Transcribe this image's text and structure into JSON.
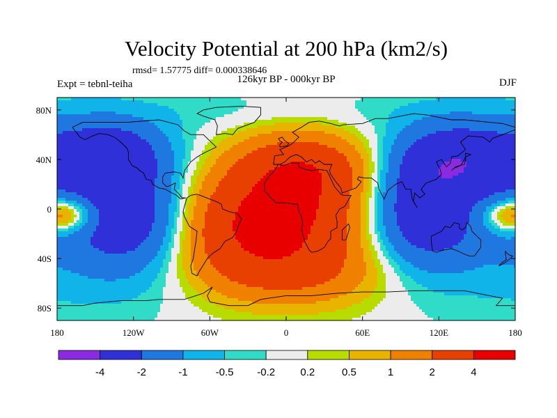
{
  "chart_data": {
    "type": "heatmap",
    "title": "Velocity Potential at 200 hPa (km2/s)",
    "stats": "rmsd= 1.57775  diff= 0.000338646",
    "subtitle": "126kyr BP - 000kyr BP",
    "left_label": "Expt = tebnl-teiha",
    "right_label": "DJF",
    "lon_range": [
      -180,
      180
    ],
    "lat_range": [
      -90,
      90
    ],
    "lon_ticks": [
      {
        "value": -180,
        "label": "180"
      },
      {
        "value": -120,
        "label": "120W"
      },
      {
        "value": -60,
        "label": "60W"
      },
      {
        "value": 0,
        "label": "0"
      },
      {
        "value": 60,
        "label": "60E"
      },
      {
        "value": 120,
        "label": "120E"
      },
      {
        "value": 180,
        "label": "180"
      }
    ],
    "lat_ticks": [
      {
        "value": 80,
        "label": "80N"
      },
      {
        "value": 40,
        "label": "40N"
      },
      {
        "value": 0,
        "label": "0"
      },
      {
        "value": -40,
        "label": "40S"
      },
      {
        "value": -80,
        "label": "80S"
      }
    ],
    "levels": [
      "-4",
      "-2",
      "-1",
      "-0.5",
      "-0.2",
      "0.2",
      "0.5",
      "1",
      "2",
      "4"
    ],
    "colors": [
      "#8a2be2",
      "#3030d8",
      "#1e78e0",
      "#10b4e8",
      "#30dcc8",
      "#ececec",
      "#b8dc00",
      "#e8b400",
      "#f08000",
      "#e84000",
      "#e80000"
    ],
    "field": {
      "type": "gaussian_sum",
      "units": "km2/s",
      "components": [
        {
          "lon": 10,
          "lat": 5,
          "amp": 3.8,
          "slon": 40,
          "slat": 35
        },
        {
          "lon": -40,
          "lat": -15,
          "amp": 2.6,
          "slon": 35,
          "slat": 30
        },
        {
          "lon": 15,
          "lat": 35,
          "amp": 1.4,
          "slon": 35,
          "slat": 15
        },
        {
          "lon": 10,
          "lat": -50,
          "amp": 1.6,
          "slon": 50,
          "slat": 20
        },
        {
          "lon": -170,
          "lat": -5,
          "amp": 1.6,
          "slon": 18,
          "slat": 10
        },
        {
          "lon": 175,
          "lat": -5,
          "amp": 1.6,
          "slon": 18,
          "slat": 10
        },
        {
          "lon": -140,
          "lat": 45,
          "amp": -2.4,
          "slon": 30,
          "slat": 18
        },
        {
          "lon": -125,
          "lat": -5,
          "amp": -2.4,
          "slon": 32,
          "slat": 30
        },
        {
          "lon": 105,
          "lat": -5,
          "amp": -2.6,
          "slon": 30,
          "slat": 30
        },
        {
          "lon": 135,
          "lat": 40,
          "amp": -2.6,
          "slon": 35,
          "slat": 20
        },
        {
          "lon": -155,
          "lat": 0,
          "amp": -0.9,
          "slon": 60,
          "slat": 60
        },
        {
          "lon": 130,
          "lat": 10,
          "amp": -0.6,
          "slon": 40,
          "slat": 50
        },
        {
          "lon": 0,
          "lat": 80,
          "amp": -0.4,
          "slon": 80,
          "slat": 12
        }
      ]
    }
  }
}
